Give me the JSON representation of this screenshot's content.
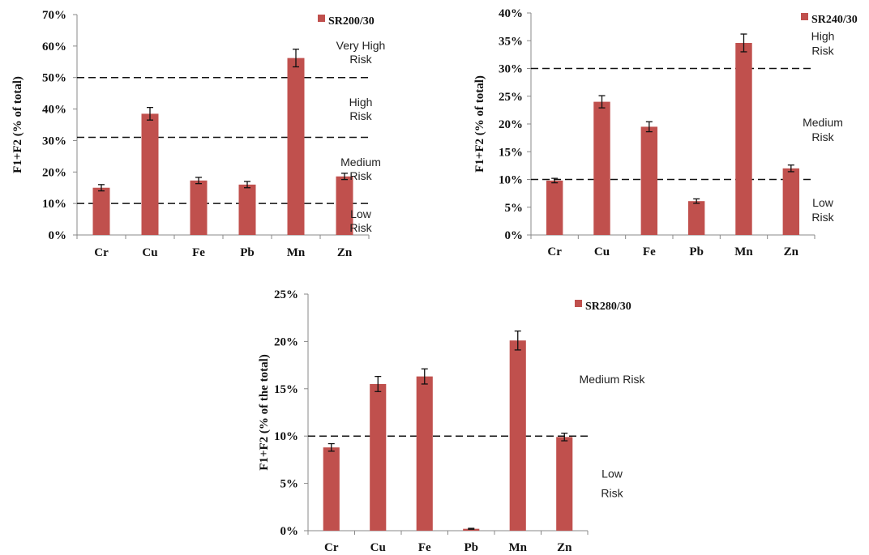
{
  "chart_data": [
    {
      "type": "bar",
      "legend": "SR200/30",
      "legend_position": "top-right",
      "ylabel": "F1+F2 (% of total)",
      "xlabel": "",
      "categories": [
        "Cr",
        "Cu",
        "Fe",
        "Pb",
        "Mn",
        "Zn"
      ],
      "values": [
        15,
        38.5,
        17.3,
        16,
        56.2,
        18.6
      ],
      "errors": [
        1,
        2,
        1,
        1,
        2.8,
        1
      ],
      "ylim": [
        0,
        70
      ],
      "yticks": [
        0,
        10,
        20,
        30,
        40,
        50,
        60,
        70
      ],
      "ytick_labels": [
        "0%",
        "10%",
        "20%",
        "30%",
        "40%",
        "50%",
        "60%",
        "70%"
      ],
      "thresholds": [
        10,
        31,
        50
      ],
      "risk_labels": [
        {
          "lines": [
            "Very High",
            "Risk"
          ],
          "y": 58,
          "side": "upper"
        },
        {
          "lines": [
            "High",
            "Risk"
          ],
          "y": 40,
          "side": "middle"
        },
        {
          "lines": [
            "Medium",
            "Risk"
          ],
          "y": 21,
          "side": "middle"
        },
        {
          "lines": [
            "Low",
            "Risk"
          ],
          "y": 4.5,
          "side": "lower"
        }
      ],
      "bar_color": "#c0504d",
      "grid": false
    },
    {
      "type": "bar",
      "legend": "SR240/30",
      "legend_position": "top-right",
      "ylabel": "F1+F2 (% of total)",
      "xlabel": "",
      "categories": [
        "Cr",
        "Cu",
        "Fe",
        "Pb",
        "Mn",
        "Zn"
      ],
      "values": [
        9.8,
        24,
        19.5,
        6.1,
        34.6,
        12
      ],
      "errors": [
        0.4,
        1.1,
        0.9,
        0.4,
        1.6,
        0.6
      ],
      "ylim": [
        0,
        40
      ],
      "yticks": [
        0,
        5,
        10,
        15,
        20,
        25,
        30,
        35,
        40
      ],
      "ytick_labels": [
        "0%",
        "5%",
        "10%",
        "15%",
        "20%",
        "25%",
        "30%",
        "35%",
        "40%"
      ],
      "thresholds": [
        10,
        30
      ],
      "risk_labels": [
        {
          "lines": [
            "High",
            "Risk"
          ],
          "y": 34.5
        },
        {
          "lines": [
            "Medium",
            "Risk"
          ],
          "y": 19
        },
        {
          "lines": [
            "Low",
            "Risk"
          ],
          "y": 4.5
        }
      ],
      "bar_color": "#c0504d",
      "grid": false
    },
    {
      "type": "bar",
      "legend": "SR280/30",
      "legend_position": "top-right",
      "ylabel": "F1+F2 (% of the total)",
      "xlabel": "",
      "categories": [
        "Cr",
        "Cu",
        "Fe",
        "Pb",
        "Mn",
        "Zn"
      ],
      "values": [
        8.8,
        15.5,
        16.3,
        0.2,
        20.1,
        9.9
      ],
      "errors": [
        0.4,
        0.8,
        0.8,
        0.05,
        1,
        0.4
      ],
      "ylim": [
        0,
        25
      ],
      "yticks": [
        0,
        5,
        10,
        15,
        20,
        25
      ],
      "ytick_labels": [
        "0%",
        "5%",
        "10%",
        "15%",
        "20%",
        "25%"
      ],
      "thresholds": [
        10
      ],
      "risk_labels": [
        {
          "lines": [
            "Medium Risk"
          ],
          "y": 16
        },
        {
          "lines": [
            "Low",
            "Risk"
          ],
          "y": 5
        }
      ],
      "bar_color": "#c0504d",
      "grid": false
    }
  ]
}
